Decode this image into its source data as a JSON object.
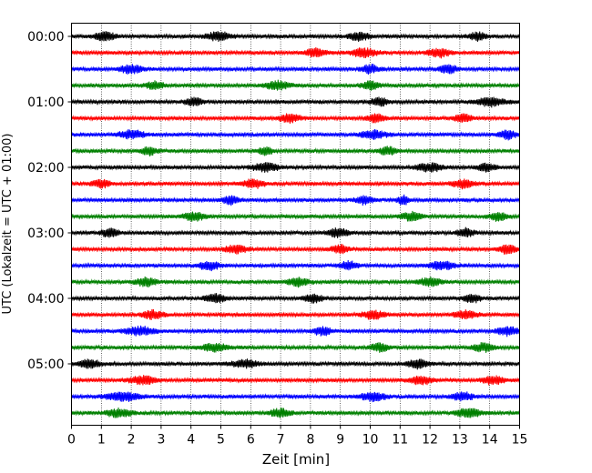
{
  "chart_data": {
    "type": "line",
    "title": "",
    "xlabel": "Zeit  [min]",
    "ylabel": "UTC (Lokalzeit = UTC + 01:00)",
    "xlim": [
      0,
      15
    ],
    "x_ticks": [
      "0",
      "1",
      "2",
      "3",
      "4",
      "5",
      "6",
      "7",
      "8",
      "9",
      "10",
      "11",
      "12",
      "13",
      "14",
      "15"
    ],
    "y_ticks": [
      {
        "label": "00:00",
        "row": 0
      },
      {
        "label": "01:00",
        "row": 4
      },
      {
        "label": "02:00",
        "row": 8
      },
      {
        "label": "03:00",
        "row": 12
      },
      {
        "label": "04:00",
        "row": 16
      },
      {
        "label": "05:00",
        "row": 20
      }
    ],
    "row_minutes": 15,
    "row_colors": [
      "#000000",
      "#ff0000",
      "#0000ff",
      "#008000"
    ],
    "vertical_grid": true,
    "series": [
      {
        "start": "00:00",
        "color": "#000000",
        "bursts": [
          [
            1.1,
            0.5
          ],
          [
            4.9,
            0.6
          ],
          [
            9.6,
            0.5
          ],
          [
            13.6,
            0.4
          ]
        ]
      },
      {
        "start": "00:15",
        "color": "#ff0000",
        "bursts": [
          [
            8.2,
            0.5
          ],
          [
            9.8,
            0.6
          ],
          [
            12.3,
            0.5
          ]
        ]
      },
      {
        "start": "00:30",
        "color": "#0000ff",
        "bursts": [
          [
            2.0,
            0.5
          ],
          [
            10.0,
            0.4
          ],
          [
            12.6,
            0.4
          ]
        ]
      },
      {
        "start": "00:45",
        "color": "#008000",
        "bursts": [
          [
            6.9,
            0.6
          ],
          [
            2.8,
            0.4
          ],
          [
            10.0,
            0.4
          ]
        ]
      },
      {
        "start": "01:00",
        "color": "#000000",
        "bursts": [
          [
            14.0,
            0.7
          ],
          [
            10.3,
            0.4
          ],
          [
            4.1,
            0.4
          ]
        ]
      },
      {
        "start": "01:15",
        "color": "#ff0000",
        "bursts": [
          [
            7.3,
            0.5
          ],
          [
            10.2,
            0.4
          ],
          [
            13.1,
            0.4
          ]
        ]
      },
      {
        "start": "01:30",
        "color": "#0000ff",
        "bursts": [
          [
            2.0,
            0.6
          ],
          [
            10.1,
            0.6
          ],
          [
            14.6,
            0.4
          ]
        ]
      },
      {
        "start": "01:45",
        "color": "#008000",
        "bursts": [
          [
            2.6,
            0.4
          ],
          [
            10.6,
            0.4
          ],
          [
            6.5,
            0.3
          ]
        ]
      },
      {
        "start": "02:00",
        "color": "#000000",
        "bursts": [
          [
            6.5,
            0.6
          ],
          [
            12.0,
            0.6
          ],
          [
            13.9,
            0.4
          ]
        ]
      },
      {
        "start": "02:15",
        "color": "#ff0000",
        "bursts": [
          [
            6.1,
            0.5
          ],
          [
            13.1,
            0.5
          ],
          [
            1.0,
            0.4
          ]
        ]
      },
      {
        "start": "02:30",
        "color": "#0000ff",
        "bursts": [
          [
            5.3,
            0.4
          ],
          [
            9.8,
            0.4
          ],
          [
            11.1,
            0.3
          ]
        ]
      },
      {
        "start": "02:45",
        "color": "#008000",
        "bursts": [
          [
            4.1,
            0.5
          ],
          [
            11.4,
            0.5
          ],
          [
            14.3,
            0.4
          ]
        ]
      },
      {
        "start": "03:00",
        "color": "#000000",
        "bursts": [
          [
            1.3,
            0.4
          ],
          [
            8.9,
            0.5
          ],
          [
            13.2,
            0.4
          ]
        ]
      },
      {
        "start": "03:15",
        "color": "#ff0000",
        "bursts": [
          [
            5.5,
            0.5
          ],
          [
            9.0,
            0.4
          ],
          [
            14.6,
            0.4
          ]
        ]
      },
      {
        "start": "03:30",
        "color": "#0000ff",
        "bursts": [
          [
            4.6,
            0.5
          ],
          [
            12.4,
            0.6
          ],
          [
            9.3,
            0.4
          ]
        ]
      },
      {
        "start": "03:45",
        "color": "#008000",
        "bursts": [
          [
            2.5,
            0.5
          ],
          [
            7.6,
            0.5
          ],
          [
            12.0,
            0.5
          ]
        ]
      },
      {
        "start": "04:00",
        "color": "#000000",
        "bursts": [
          [
            4.8,
            0.5
          ],
          [
            8.1,
            0.4
          ],
          [
            13.4,
            0.4
          ]
        ]
      },
      {
        "start": "04:15",
        "color": "#ff0000",
        "bursts": [
          [
            2.7,
            0.5
          ],
          [
            10.1,
            0.5
          ],
          [
            13.2,
            0.5
          ]
        ]
      },
      {
        "start": "04:30",
        "color": "#0000ff",
        "bursts": [
          [
            2.3,
            0.7
          ],
          [
            8.4,
            0.4
          ],
          [
            14.6,
            0.5
          ]
        ]
      },
      {
        "start": "04:45",
        "color": "#008000",
        "bursts": [
          [
            4.8,
            0.6
          ],
          [
            10.3,
            0.4
          ],
          [
            13.8,
            0.5
          ]
        ]
      },
      {
        "start": "05:00",
        "color": "#000000",
        "bursts": [
          [
            0.6,
            0.5
          ],
          [
            5.8,
            0.6
          ],
          [
            11.6,
            0.5
          ]
        ]
      },
      {
        "start": "05:15",
        "color": "#ff0000",
        "bursts": [
          [
            2.4,
            0.6
          ],
          [
            11.7,
            0.5
          ],
          [
            14.1,
            0.5
          ]
        ]
      },
      {
        "start": "05:30",
        "color": "#0000ff",
        "bursts": [
          [
            1.7,
            0.8
          ],
          [
            10.1,
            0.6
          ],
          [
            13.1,
            0.5
          ]
        ]
      },
      {
        "start": "05:45",
        "color": "#008000",
        "bursts": [
          [
            1.6,
            0.6
          ],
          [
            13.3,
            0.6
          ],
          [
            7.0,
            0.5
          ]
        ]
      }
    ]
  }
}
